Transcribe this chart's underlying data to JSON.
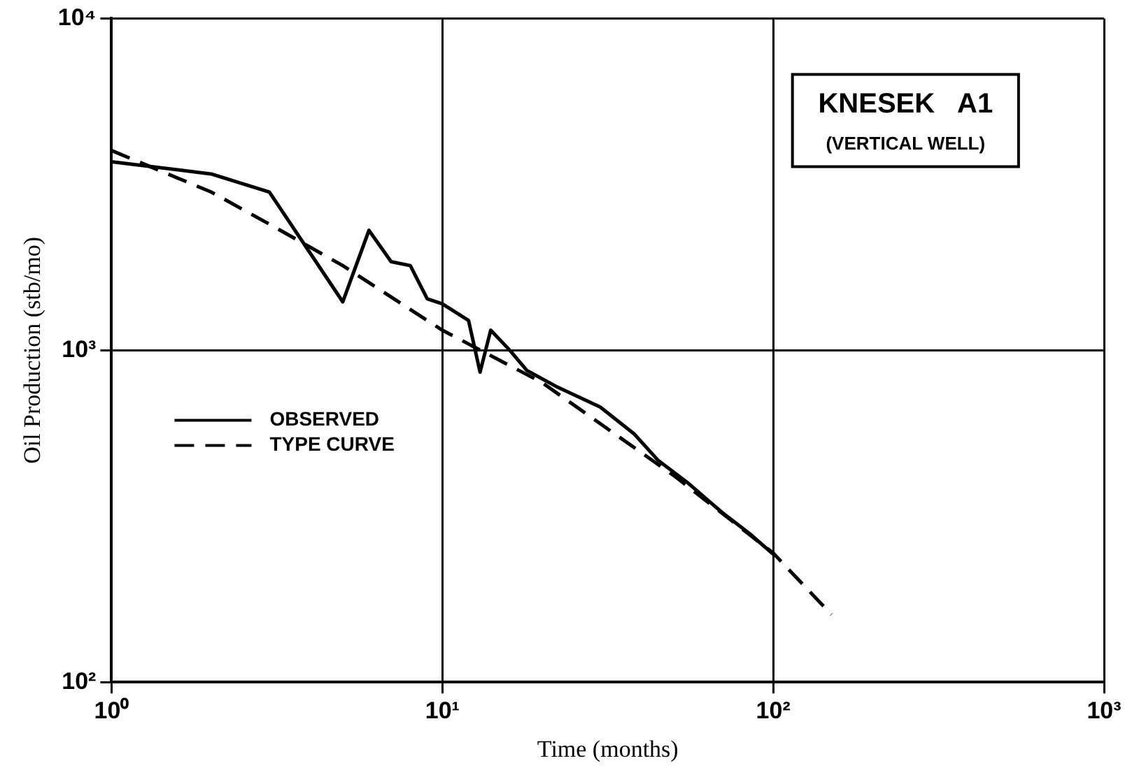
{
  "chart_data": {
    "type": "line",
    "xlabel": "Time (months)",
    "ylabel": "Oil Production (stb/mo)",
    "annotations": [
      "KNESEK   A1",
      "(VERTICAL WELL)"
    ],
    "log": "xy",
    "grid": true,
    "legend": "left",
    "xlim": [
      1,
      1000
    ],
    "xticks": [
      {
        "value": 1,
        "label": "10⁰"
      },
      {
        "value": 10,
        "label": "10¹"
      },
      {
        "value": 100,
        "label": "10²"
      },
      {
        "value": 1000,
        "label": "10³"
      }
    ],
    "ylim": [
      100,
      10000
    ],
    "yticks": [
      {
        "value": 100,
        "label": "10²"
      },
      {
        "value": 1000,
        "label": "10³"
      },
      {
        "value": 10000,
        "label": "10⁴"
      }
    ],
    "series": [
      {
        "name": "OBSERVED",
        "color": "#000000",
        "line_style": "solid",
        "x": [
          1,
          2,
          3,
          5,
          6,
          7,
          8,
          9,
          10,
          12,
          13,
          14,
          16,
          18,
          22,
          30,
          38,
          45,
          55,
          70,
          85,
          100
        ],
        "values": [
          3700,
          3400,
          3000,
          1400,
          2300,
          1850,
          1800,
          1430,
          1380,
          1230,
          860,
          1150,
          1000,
          870,
          780,
          675,
          560,
          465,
          400,
          325,
          280,
          243
        ]
      },
      {
        "name": "TYPE CURVE",
        "color": "#000000",
        "line_style": "dashed",
        "x": [
          1,
          2,
          3,
          5,
          10,
          20,
          50,
          100,
          150
        ],
        "values": [
          4000,
          3000,
          2400,
          1800,
          1150,
          800,
          420,
          245,
          160
        ]
      }
    ]
  }
}
